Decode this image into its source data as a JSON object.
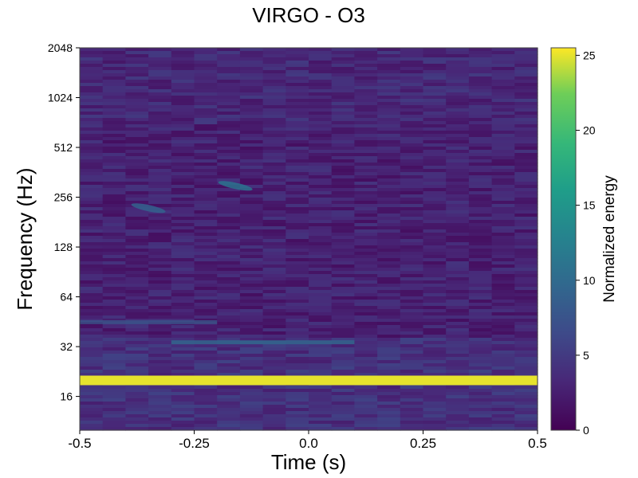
{
  "chart_data": {
    "type": "heatmap",
    "title": "VIRGO - O3",
    "xlabel": "Time (s)",
    "ylabel": "Frequency (Hz)",
    "x_ticks": [
      "-0.5",
      "-0.25",
      "0.0",
      "0.25",
      "0.5"
    ],
    "x_tick_values": [
      -0.5,
      -0.25,
      0.0,
      0.25,
      0.5
    ],
    "xlim": [
      -0.5,
      0.5
    ],
    "y_scale": "log2",
    "y_ticks": [
      "16",
      "32",
      "64",
      "128",
      "256",
      "512",
      "1024",
      "2048"
    ],
    "y_tick_values": [
      16,
      32,
      64,
      128,
      256,
      512,
      1024,
      2048
    ],
    "ylim": [
      10,
      2048
    ],
    "colorbar": {
      "label": "Normalized energy",
      "ticks": [
        "0",
        "5",
        "10",
        "15",
        "20",
        "25"
      ],
      "tick_values": [
        0,
        5,
        10,
        15,
        20,
        25
      ],
      "range": [
        0,
        25.5
      ],
      "colormap": "viridis"
    },
    "features": [
      {
        "description": "strong narrow line",
        "frequency": 20,
        "time_range": [
          -0.5,
          0.5
        ],
        "energy": 25
      },
      {
        "description": "moderate band",
        "frequency": 34,
        "time_range": [
          -0.3,
          0.1
        ],
        "energy": 10
      },
      {
        "description": "weak band",
        "frequency": 45,
        "time_range": [
          -0.5,
          -0.2
        ],
        "energy": 8
      },
      {
        "description": "weak blob",
        "frequency": 300,
        "time": -0.16,
        "energy": 11
      },
      {
        "description": "weak blob",
        "frequency": 220,
        "time": -0.35,
        "energy": 9
      }
    ]
  }
}
